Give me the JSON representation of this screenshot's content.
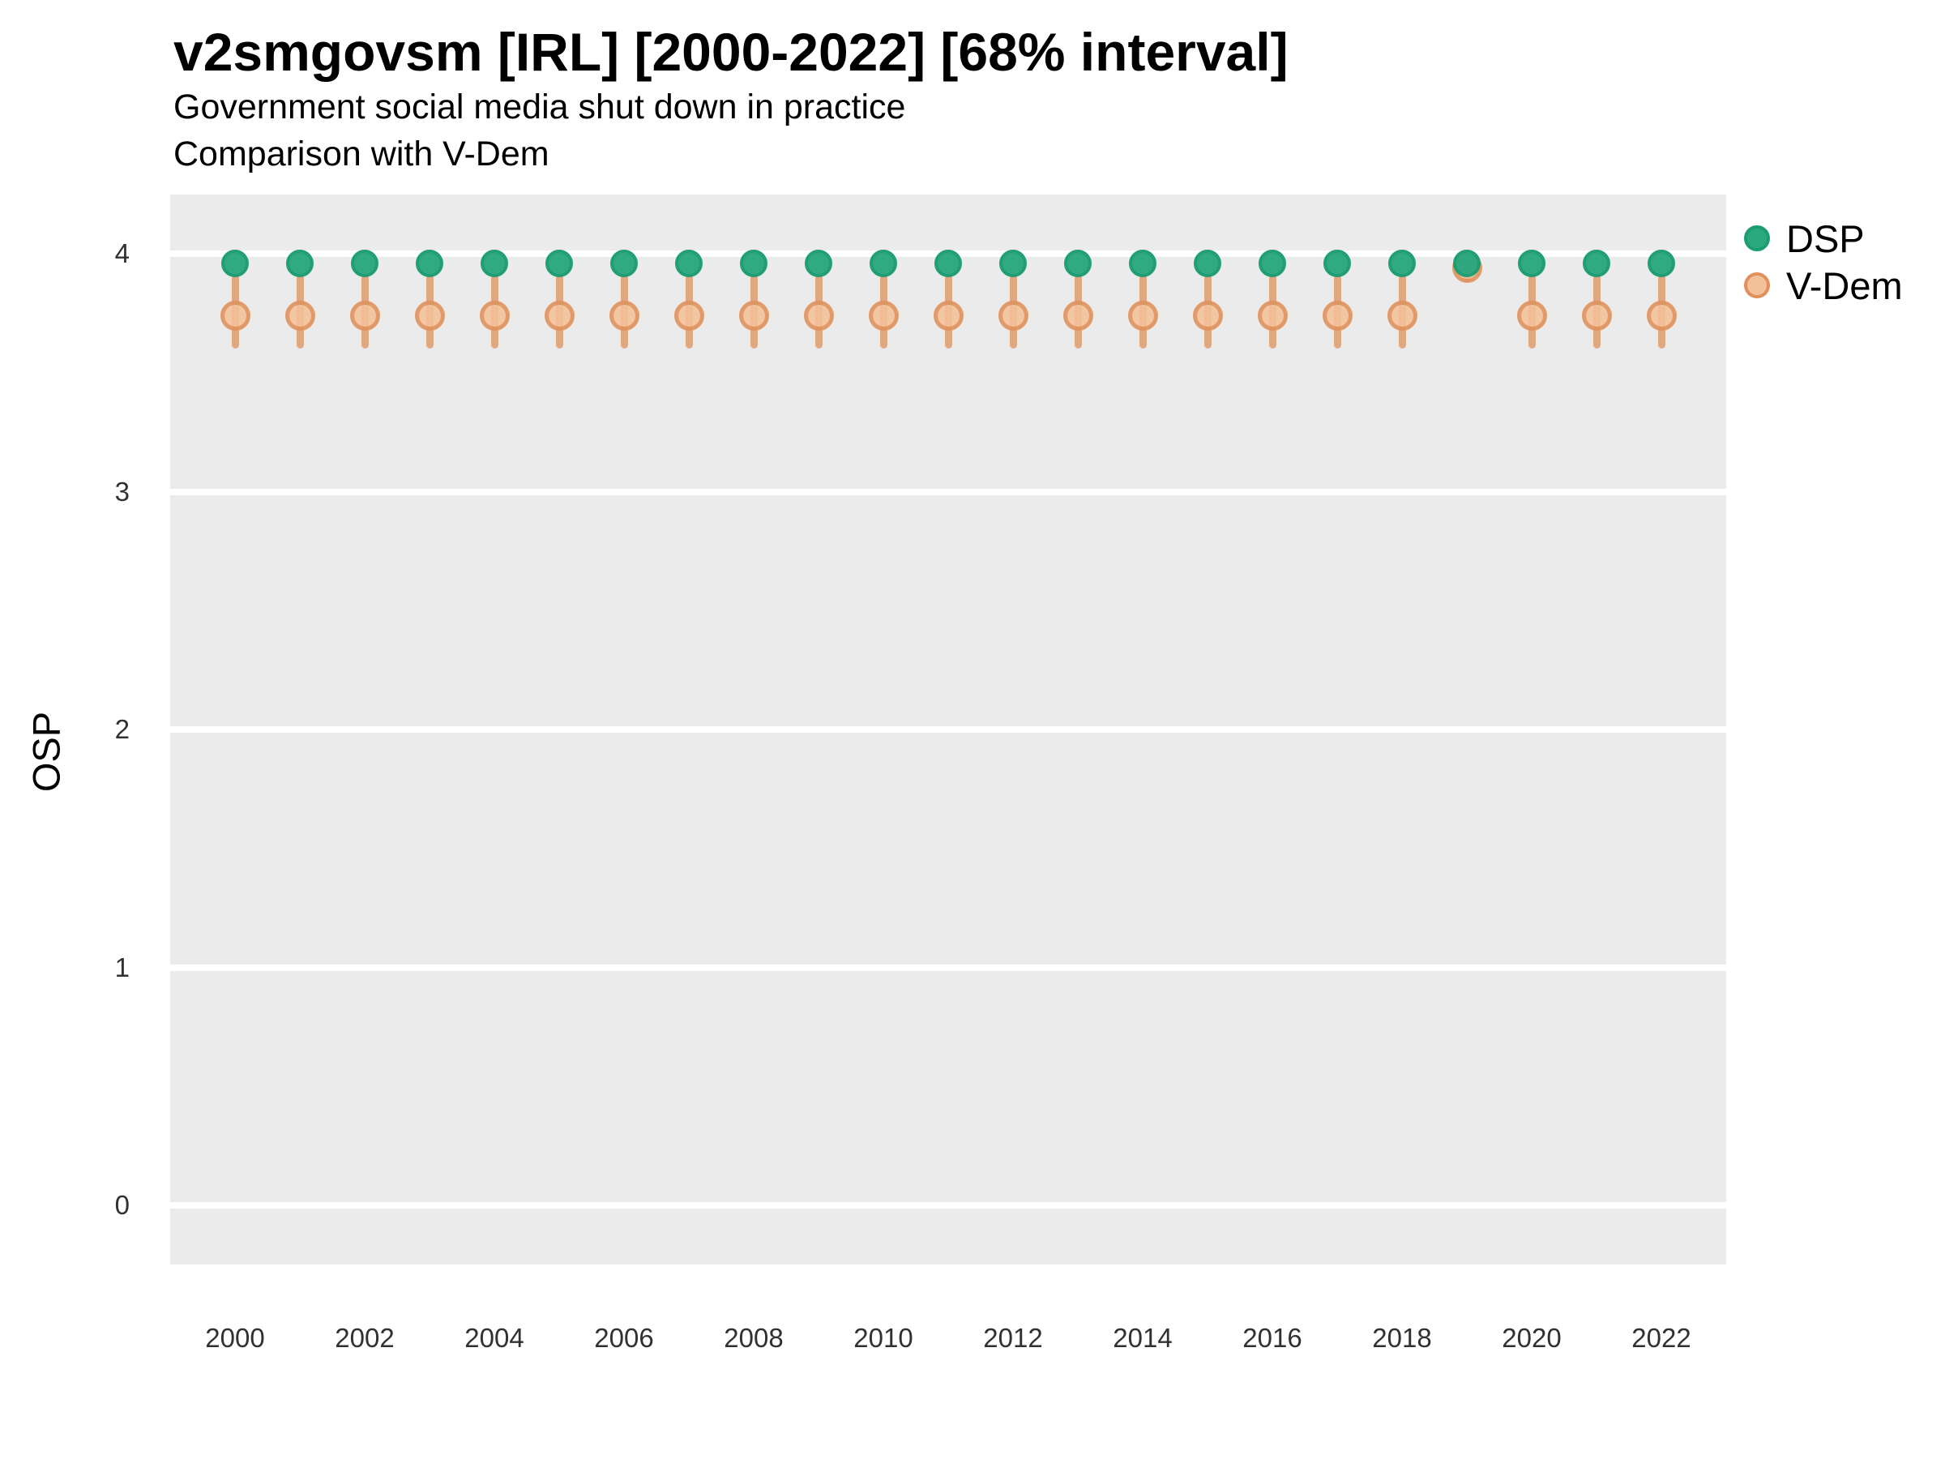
{
  "header": {
    "title": "v2smgovsm [IRL] [2000-2022] [68% interval]",
    "subtitle_line1": "Government social media shut down in practice",
    "subtitle_line2": "Comparison with V-Dem"
  },
  "y_axis": {
    "title": "OSP",
    "tick_labels": [
      "4",
      "3",
      "2",
      "1",
      "0"
    ]
  },
  "x_axis": {
    "tick_labels": [
      "2000",
      "2002",
      "2004",
      "2006",
      "2008",
      "2010",
      "2012",
      "2014",
      "2016",
      "2018",
      "2020",
      "2022"
    ]
  },
  "legend": {
    "items": [
      {
        "label": "DSP",
        "fill": "#2AA87E",
        "stroke": "#1C9C72"
      },
      {
        "label": "V-Dem",
        "fill": "#F3C09A",
        "stroke": "#E0905A"
      }
    ]
  },
  "colors": {
    "panel_background": "#EBEBEB",
    "grid_line": "#FFFFFF",
    "dsp_fill": "#2AA87E",
    "dsp_stroke": "#1C9C72",
    "vdem_fill": "#F3C09A",
    "vdem_stroke": "#E0905A",
    "interval_bar": "rgba(219,153,102,0.80)",
    "title_text": "#000000",
    "tick_text": "#303030"
  },
  "chart_data": {
    "type": "scatter",
    "title": "v2smgovsm [IRL] [2000-2022] [68% interval]",
    "subtitle": "Government social media shut down in practice",
    "annotation": "Comparison with V-Dem",
    "xlabel": "",
    "ylabel": "OSP",
    "ylim": [
      -0.25,
      4.25
    ],
    "y_ticks": [
      4,
      3,
      2,
      1,
      0
    ],
    "x_tick_years": [
      2000,
      2002,
      2004,
      2006,
      2008,
      2010,
      2012,
      2014,
      2016,
      2018,
      2020,
      2022
    ],
    "grid": "horizontal-major-only",
    "legend_position": "right-top",
    "interval_level": "68%",
    "x": [
      2000,
      2001,
      2002,
      2003,
      2004,
      2005,
      2006,
      2007,
      2008,
      2009,
      2010,
      2011,
      2012,
      2013,
      2014,
      2015,
      2016,
      2017,
      2018,
      2019,
      2020,
      2021,
      2022
    ],
    "series": [
      {
        "name": "DSP",
        "mark": "point",
        "values": [
          3.96,
          3.96,
          3.96,
          3.96,
          3.96,
          3.96,
          3.96,
          3.96,
          3.96,
          3.96,
          3.96,
          3.96,
          3.96,
          3.96,
          3.96,
          3.96,
          3.96,
          3.96,
          3.96,
          3.96,
          3.96,
          3.96,
          3.96
        ]
      },
      {
        "name": "V-Dem",
        "mark": "point-with-interval",
        "values": [
          3.74,
          3.74,
          3.74,
          3.74,
          3.74,
          3.74,
          3.74,
          3.74,
          3.74,
          3.74,
          3.74,
          3.74,
          3.74,
          3.74,
          3.74,
          3.74,
          3.74,
          3.74,
          3.74,
          3.94,
          3.74,
          3.74,
          3.74
        ],
        "interval_low": [
          3.6,
          3.6,
          3.6,
          3.6,
          3.6,
          3.6,
          3.6,
          3.6,
          3.6,
          3.6,
          3.6,
          3.6,
          3.6,
          3.6,
          3.6,
          3.6,
          3.6,
          3.6,
          3.6,
          3.88,
          3.6,
          3.6,
          3.6
        ],
        "interval_high": [
          3.91,
          3.91,
          3.91,
          3.91,
          3.91,
          3.91,
          3.91,
          3.91,
          3.91,
          3.91,
          3.91,
          3.91,
          3.91,
          3.91,
          3.91,
          3.91,
          3.91,
          3.91,
          3.91,
          3.97,
          3.91,
          3.91,
          3.91
        ]
      }
    ]
  }
}
